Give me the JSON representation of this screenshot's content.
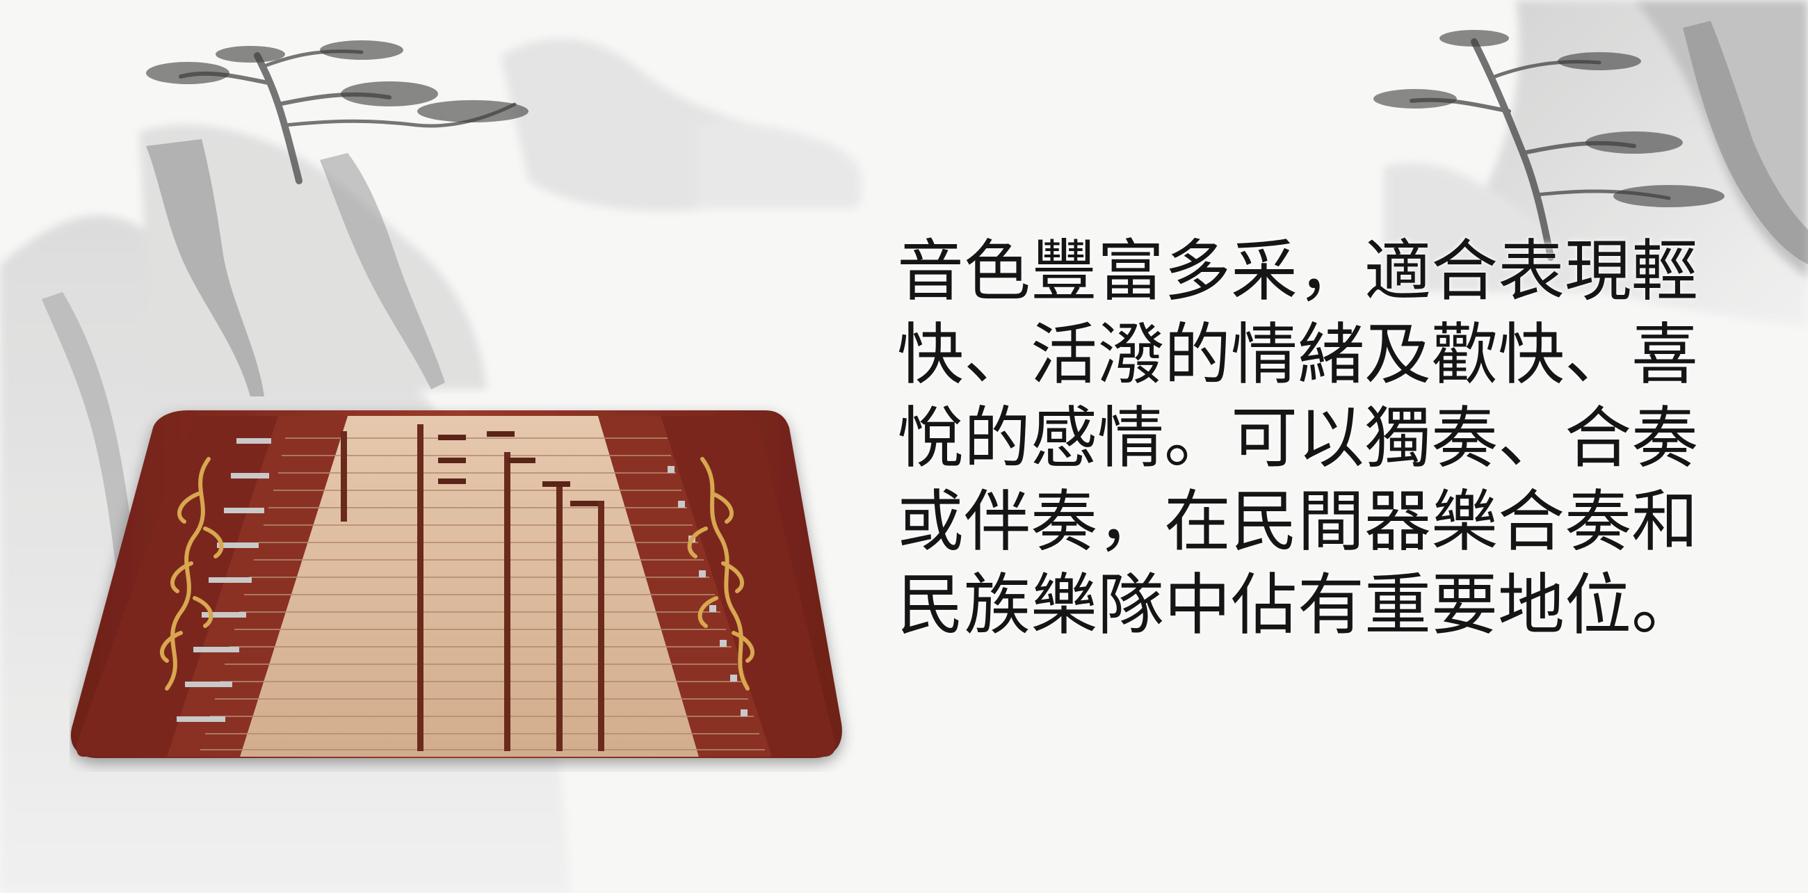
{
  "colors": {
    "background": "#f7f7f6",
    "ink": "#151515",
    "wood_dark": "#7a261d",
    "wood_mid": "#9b3b2b",
    "soundboard": "#d9b79a",
    "gold_ornament": "#d8a74f"
  },
  "icons": {
    "landscape": "ink-landscape-icon",
    "instrument": "yangqin-dulcimer-icon"
  },
  "text_lines": [
    "音色豐富多采，適合表現輕",
    "快、活潑的情緒及歡快、喜",
    "悅的感情。可以獨奏、合奏",
    "或伴奏，在民間器樂合奏和",
    "民族樂隊中佔有重要地位。"
  ]
}
